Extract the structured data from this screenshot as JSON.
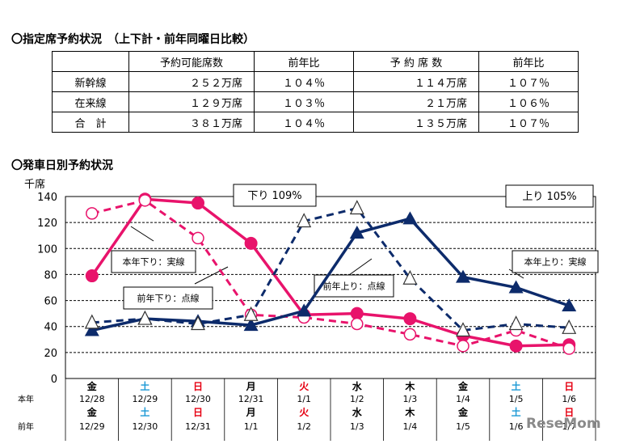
{
  "section1": {
    "title": "〇指定席予約状況　（上下計・前年同曜日比較）",
    "headers": [
      "",
      "予約可能席数",
      "前年比",
      "予 約 席 数",
      "前年比"
    ],
    "rows": [
      {
        "label": "新幹線",
        "cells": [
          "２５２万席",
          "１０４％",
          "１１４万席",
          "１０７％"
        ]
      },
      {
        "label": "在来線",
        "cells": [
          "１２９万席",
          "１０３％",
          "２１万席",
          "１０６％"
        ]
      },
      {
        "label": "合　計",
        "cells": [
          "３８１万席",
          "１０４％",
          "１３５万席",
          "１０７％"
        ]
      }
    ]
  },
  "section2": {
    "title": "〇発車日別予約状況"
  },
  "chart_data": {
    "type": "line",
    "ylabel": "千席",
    "ylim": [
      0,
      140
    ],
    "yticks": [
      0,
      20,
      40,
      60,
      80,
      100,
      120,
      140
    ],
    "grid": true,
    "categories": [
      "12/28",
      "12/29",
      "12/30",
      "12/31",
      "1/1",
      "1/2",
      "1/3",
      "1/4",
      "1/5",
      "1/6"
    ],
    "row_labels": {
      "this_year": "本年",
      "last_year": "前年"
    },
    "this_year_weekdays": [
      "金",
      "土",
      "日",
      "月",
      "火",
      "水",
      "木",
      "金",
      "土",
      "日"
    ],
    "this_year_dates": [
      "12/28",
      "12/29",
      "12/30",
      "12/31",
      "1/1",
      "1/2",
      "1/3",
      "1/4",
      "1/5",
      "1/6"
    ],
    "last_year_weekdays": [
      "金",
      "土",
      "日",
      "月",
      "火",
      "水",
      "木",
      "金",
      "土",
      "日"
    ],
    "last_year_dates": [
      "12/29",
      "12/30",
      "12/31",
      "1/1",
      "1/2",
      "1/3",
      "1/4",
      "1/5",
      "1/6",
      "1/7"
    ],
    "weekday_colors": {
      "金": "#000000",
      "土": "#1e9ad6",
      "日": "#e60012",
      "月": "#000000",
      "火": "#e60012",
      "水": "#000000",
      "木": "#000000"
    },
    "series": [
      {
        "key": "down_this",
        "values": [
          79,
          138,
          135,
          104,
          49,
          50,
          46,
          33,
          25,
          26
        ],
        "color": "#e8136b",
        "dash": false,
        "marker": "circle-filled"
      },
      {
        "key": "down_last",
        "values": [
          127,
          137,
          108,
          49,
          47,
          42,
          34,
          25,
          37,
          23
        ],
        "color": "#e8136b",
        "dash": true,
        "marker": "circle-open"
      },
      {
        "key": "up_this",
        "values": [
          37,
          46,
          44,
          41,
          52,
          112,
          123,
          78,
          70,
          56
        ],
        "color": "#0d2b6b",
        "dash": false,
        "marker": "triangle-filled"
      },
      {
        "key": "up_last",
        "values": [
          43,
          46,
          42,
          49,
          121,
          131,
          77,
          37,
          42,
          39
        ],
        "color": "#0d2b6b",
        "dash": true,
        "marker": "triangle-open"
      }
    ],
    "annotations": {
      "down_total": "下り 109%",
      "up_total": "上り 105%",
      "down_this_label": "本年下り：実線",
      "down_last_label": "前年下り：点線",
      "up_last_label": "前年上り：点線",
      "up_this_label": "本年上り：実線"
    }
  },
  "watermark": "ReseMom"
}
